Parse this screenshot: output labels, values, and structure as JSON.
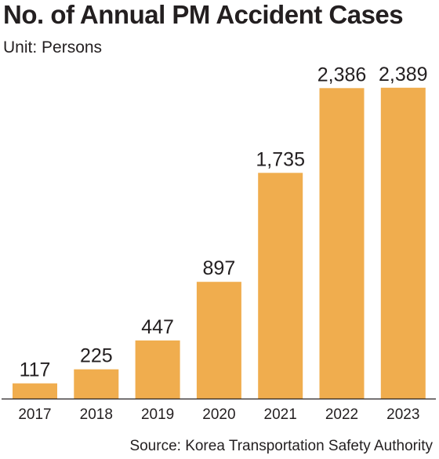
{
  "chart_data": {
    "type": "bar",
    "title": "No. of Annual PM Accident Cases",
    "subtitle": "Unit: Persons",
    "source": "Source: Korea Transportation Safety Authority",
    "categories": [
      "2017",
      "2018",
      "2019",
      "2020",
      "2021",
      "2022",
      "2023"
    ],
    "values": [
      117,
      225,
      447,
      897,
      1735,
      2386,
      2389
    ],
    "value_labels": [
      "117",
      "225",
      "447",
      "897",
      "1,735",
      "2,386",
      "2,389"
    ],
    "ylim": [
      0,
      2400
    ],
    "grid": false,
    "legend": "none",
    "bar_color": "#f0ad4e",
    "axis_color": "#231f20"
  }
}
